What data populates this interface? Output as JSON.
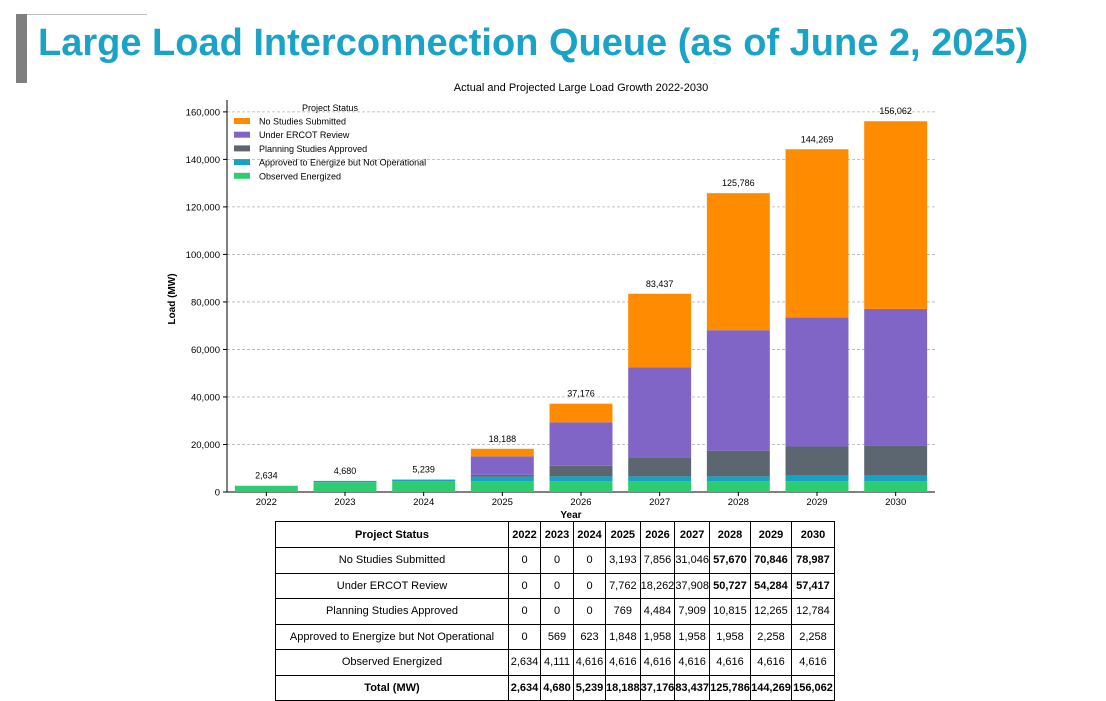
{
  "slide": {
    "title": "Large Load Interconnection Queue (as of June 2, 2025)"
  },
  "chart_data": {
    "type": "bar",
    "stacked": true,
    "title": "Actual and Projected Large Load Growth 2022-2030",
    "xlabel": "Year",
    "ylabel": "Load (MW)",
    "ylim": [
      0,
      165000
    ],
    "yticks": [
      0,
      20000,
      40000,
      60000,
      80000,
      100000,
      120000,
      140000,
      160000
    ],
    "ytick_labels": [
      "0",
      "20,000",
      "40,000",
      "60,000",
      "80,000",
      "100,000",
      "120,000",
      "140,000",
      "160,000"
    ],
    "grid": "horizontal",
    "legend_title": "Project Status",
    "legend_position": "top-left",
    "categories": [
      "2022",
      "2023",
      "2024",
      "2025",
      "2026",
      "2027",
      "2028",
      "2029",
      "2030"
    ],
    "series": [
      {
        "name": "Observed Energized",
        "color": "#2ecc71",
        "values": [
          2634,
          4111,
          4616,
          4616,
          4616,
          4616,
          4616,
          4616,
          4616
        ]
      },
      {
        "name": "Approved to Energize but Not Operational",
        "color": "#17a2c4",
        "values": [
          0,
          569,
          623,
          1848,
          1958,
          1958,
          1958,
          2258,
          2258
        ]
      },
      {
        "name": "Planning Studies Approved",
        "color": "#5c6670",
        "values": [
          0,
          0,
          0,
          769,
          4484,
          7909,
          10815,
          12265,
          12784
        ]
      },
      {
        "name": "Under ERCOT Review",
        "color": "#8064c6",
        "values": [
          0,
          0,
          0,
          7762,
          18262,
          37908,
          50727,
          54284,
          57417
        ]
      },
      {
        "name": "No Studies Submitted",
        "color": "#ff8c00",
        "values": [
          0,
          0,
          0,
          3193,
          7856,
          31046,
          57670,
          70846,
          78987
        ]
      }
    ],
    "legend_order": [
      "No Studies Submitted",
      "Under ERCOT Review",
      "Planning Studies Approved",
      "Approved to Energize but Not Operational",
      "Observed Energized"
    ],
    "totals": [
      2634,
      4680,
      5239,
      18188,
      37176,
      83437,
      125786,
      144269,
      156062
    ],
    "total_labels": [
      "2,634",
      "4,680",
      "5,239",
      "18,188",
      "37,176",
      "83,437",
      "125,786",
      "144,269",
      "156,062"
    ]
  },
  "table": {
    "header_label": "Project Status",
    "years": [
      "2022",
      "2023",
      "2024",
      "2025",
      "2026",
      "2027",
      "2028",
      "2029",
      "2030"
    ],
    "rows": [
      {
        "label": "No Studies Submitted",
        "cells": [
          "0",
          "0",
          "0",
          "3,193",
          "7,856",
          "31,046",
          "57,670",
          "70,846",
          "78,987"
        ]
      },
      {
        "label": "Under ERCOT Review",
        "cells": [
          "0",
          "0",
          "0",
          "7,762",
          "18,262",
          "37,908",
          "50,727",
          "54,284",
          "57,417"
        ]
      },
      {
        "label": "Planning Studies Approved",
        "cells": [
          "0",
          "0",
          "0",
          "769",
          "4,484",
          "7,909",
          "10,815",
          "12,265",
          "12,784"
        ]
      },
      {
        "label": "Approved to Energize but Not Operational",
        "cells": [
          "0",
          "569",
          "623",
          "1,848",
          "1,958",
          "1,958",
          "1,958",
          "2,258",
          "2,258"
        ]
      },
      {
        "label": "Observed Energized",
        "cells": [
          "2,634",
          "4,111",
          "4,616",
          "4,616",
          "4,616",
          "4,616",
          "4,616",
          "4,616",
          "4,616"
        ]
      }
    ],
    "total": {
      "label": "Total (MW)",
      "cells": [
        "2,634",
        "4,680",
        "5,239",
        "18,188",
        "37,176",
        "83,437",
        "125,786",
        "144,269",
        "156,062"
      ]
    }
  }
}
